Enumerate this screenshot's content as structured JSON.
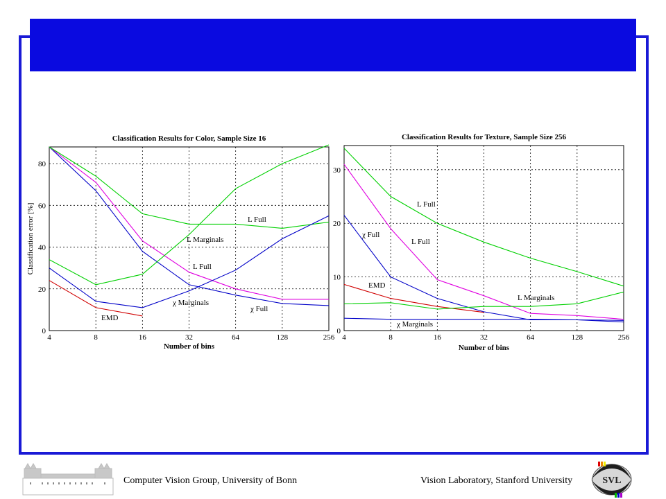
{
  "colors": {
    "frame": "#1a1ad6",
    "title_bar": "#0a0ae0",
    "blue": "#0000c8",
    "green": "#00d000",
    "magenta": "#e000e0",
    "red": "#d00000"
  },
  "footer": {
    "left_text": "Computer Vision Group, University of Bonn",
    "right_text": "Vision Laboratory, Stanford University",
    "logo_right_text": "SVL"
  },
  "chart_data": [
    {
      "type": "line",
      "title": "Classification Results for Color, Sample Size 16",
      "xlabel": "Number of bins",
      "ylabel": "Classification error [%]",
      "x": [
        4,
        8,
        16,
        32,
        64,
        128,
        256
      ],
      "x_tick_labels": [
        "4",
        "8",
        "16",
        "32",
        "64",
        "128",
        "256"
      ],
      "xscale": "log2",
      "ylim": [
        0,
        88
      ],
      "y_ticks": [
        0,
        20,
        40,
        60,
        80
      ],
      "grid": true,
      "series": [
        {
          "color": "blue",
          "values": [
            88,
            67,
            38,
            22,
            17,
            13,
            12
          ]
        },
        {
          "color": "magenta",
          "values": [
            88,
            71,
            43,
            28,
            20,
            15,
            15
          ]
        },
        {
          "color": "green",
          "values": [
            88,
            74,
            56,
            51,
            51,
            49,
            52
          ]
        },
        {
          "color": "green",
          "values": [
            34,
            22,
            27,
            46,
            68,
            80,
            89
          ]
        },
        {
          "color": "blue",
          "values": [
            30,
            14,
            11,
            19,
            29,
            44,
            55
          ]
        },
        {
          "color": "red",
          "values": [
            24,
            11,
            7,
            null,
            null,
            null,
            null
          ]
        }
      ],
      "annotations": [
        "L  Full",
        "L  Marginals",
        "L  Full",
        "χ  Marginals",
        "χ  Full",
        "EMD"
      ]
    },
    {
      "type": "line",
      "title": "Classification Results for Texture, Sample Size 256",
      "xlabel": "Number of bins",
      "ylabel": "",
      "x": [
        4,
        8,
        16,
        32,
        64,
        128,
        256
      ],
      "x_tick_labels": [
        "4",
        "8",
        "16",
        "32",
        "64",
        "128",
        "256"
      ],
      "xscale": "log2",
      "ylim": [
        0,
        34.5
      ],
      "y_ticks": [
        0,
        10,
        20,
        30
      ],
      "grid": true,
      "series": [
        {
          "color": "green",
          "values": [
            34,
            25,
            20,
            16.5,
            13.5,
            11,
            8.3
          ]
        },
        {
          "color": "magenta",
          "values": [
            31,
            19,
            9.5,
            6.5,
            3.2,
            2.8,
            2.1
          ]
        },
        {
          "color": "blue",
          "values": [
            21.5,
            10,
            6,
            3.5,
            2.0,
            2.0,
            1.6
          ]
        },
        {
          "color": "red",
          "values": [
            8.6,
            6,
            4.5,
            3.4,
            null,
            null,
            null
          ]
        },
        {
          "color": "green",
          "values": [
            5,
            5.2,
            4,
            4.5,
            4.5,
            5,
            7.2
          ]
        },
        {
          "color": "blue",
          "values": [
            2.3,
            2.1,
            2.1,
            2.1,
            2.1,
            2.0,
            1.9
          ]
        }
      ],
      "annotations": [
        "L  Full",
        "χ  Full",
        "L  Full",
        "EMD",
        "L  Marginals",
        "χ  Marginals"
      ]
    }
  ]
}
